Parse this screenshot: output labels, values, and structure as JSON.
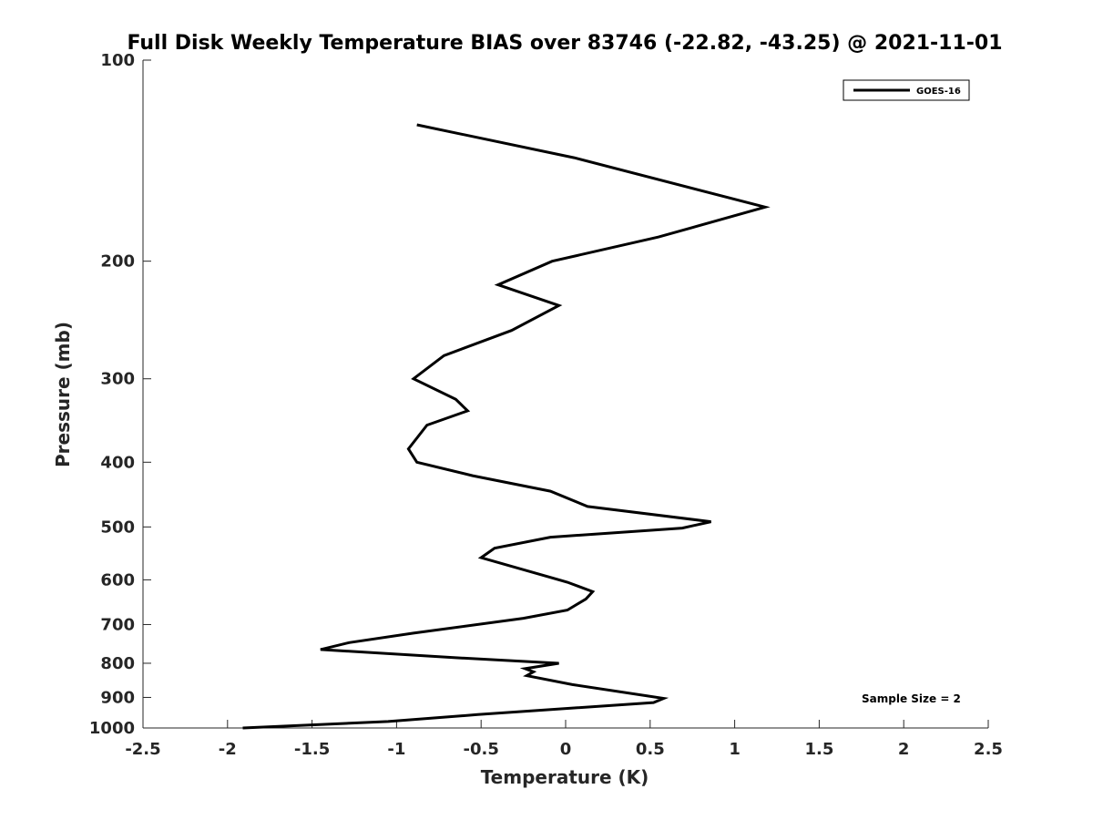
{
  "chart_data": {
    "type": "line",
    "title": "Full Disk Weekly Temperature BIAS over 83746 (-22.82, -43.25) @ 2021-11-01",
    "xlabel": "Temperature (K)",
    "ylabel": "Pressure (mb)",
    "xlim": [
      -2.5,
      2.5
    ],
    "ylim": [
      100,
      1000
    ],
    "y_scale": "log",
    "y_reversed": true,
    "grid": false,
    "legend_position": "top-right",
    "x_ticks": [
      "-2.5",
      "-2",
      "-1.5",
      "-1",
      "-0.5",
      "0",
      "0.5",
      "1",
      "1.5",
      "2",
      "2.5"
    ],
    "y_ticks": [
      "100",
      "200",
      "300",
      "400",
      "500",
      "600",
      "700",
      "800",
      "900",
      "1000"
    ],
    "annotation": "Sample Size = 2",
    "series": [
      {
        "name": "GOES-16",
        "color": "#000000",
        "points": [
          {
            "x": -0.88,
            "y": 125
          },
          {
            "x": 0.05,
            "y": 140
          },
          {
            "x": 1.18,
            "y": 166
          },
          {
            "x": 0.55,
            "y": 184
          },
          {
            "x": -0.08,
            "y": 200
          },
          {
            "x": -0.4,
            "y": 217
          },
          {
            "x": -0.04,
            "y": 233
          },
          {
            "x": -0.32,
            "y": 254
          },
          {
            "x": -0.72,
            "y": 277
          },
          {
            "x": -0.9,
            "y": 300
          },
          {
            "x": -0.65,
            "y": 322
          },
          {
            "x": -0.58,
            "y": 335
          },
          {
            "x": -0.82,
            "y": 352
          },
          {
            "x": -0.93,
            "y": 382
          },
          {
            "x": -0.88,
            "y": 400
          },
          {
            "x": -0.55,
            "y": 419
          },
          {
            "x": -0.09,
            "y": 442
          },
          {
            "x": 0.13,
            "y": 466
          },
          {
            "x": 0.86,
            "y": 491
          },
          {
            "x": 0.69,
            "y": 502
          },
          {
            "x": -0.09,
            "y": 518
          },
          {
            "x": -0.42,
            "y": 538
          },
          {
            "x": -0.5,
            "y": 556
          },
          {
            "x": 0.01,
            "y": 605
          },
          {
            "x": 0.16,
            "y": 625
          },
          {
            "x": 0.12,
            "y": 641
          },
          {
            "x": 0.01,
            "y": 666
          },
          {
            "x": -0.25,
            "y": 685
          },
          {
            "x": -0.9,
            "y": 721
          },
          {
            "x": -1.28,
            "y": 745
          },
          {
            "x": -1.45,
            "y": 763
          },
          {
            "x": -0.65,
            "y": 785
          },
          {
            "x": -0.04,
            "y": 800
          },
          {
            "x": -0.24,
            "y": 815
          },
          {
            "x": -0.19,
            "y": 824
          },
          {
            "x": -0.23,
            "y": 835
          },
          {
            "x": 0.04,
            "y": 861
          },
          {
            "x": 0.58,
            "y": 903
          },
          {
            "x": 0.52,
            "y": 916
          },
          {
            "x": -0.52,
            "y": 955
          },
          {
            "x": -1.05,
            "y": 978
          },
          {
            "x": -1.91,
            "y": 1000
          }
        ]
      }
    ]
  }
}
